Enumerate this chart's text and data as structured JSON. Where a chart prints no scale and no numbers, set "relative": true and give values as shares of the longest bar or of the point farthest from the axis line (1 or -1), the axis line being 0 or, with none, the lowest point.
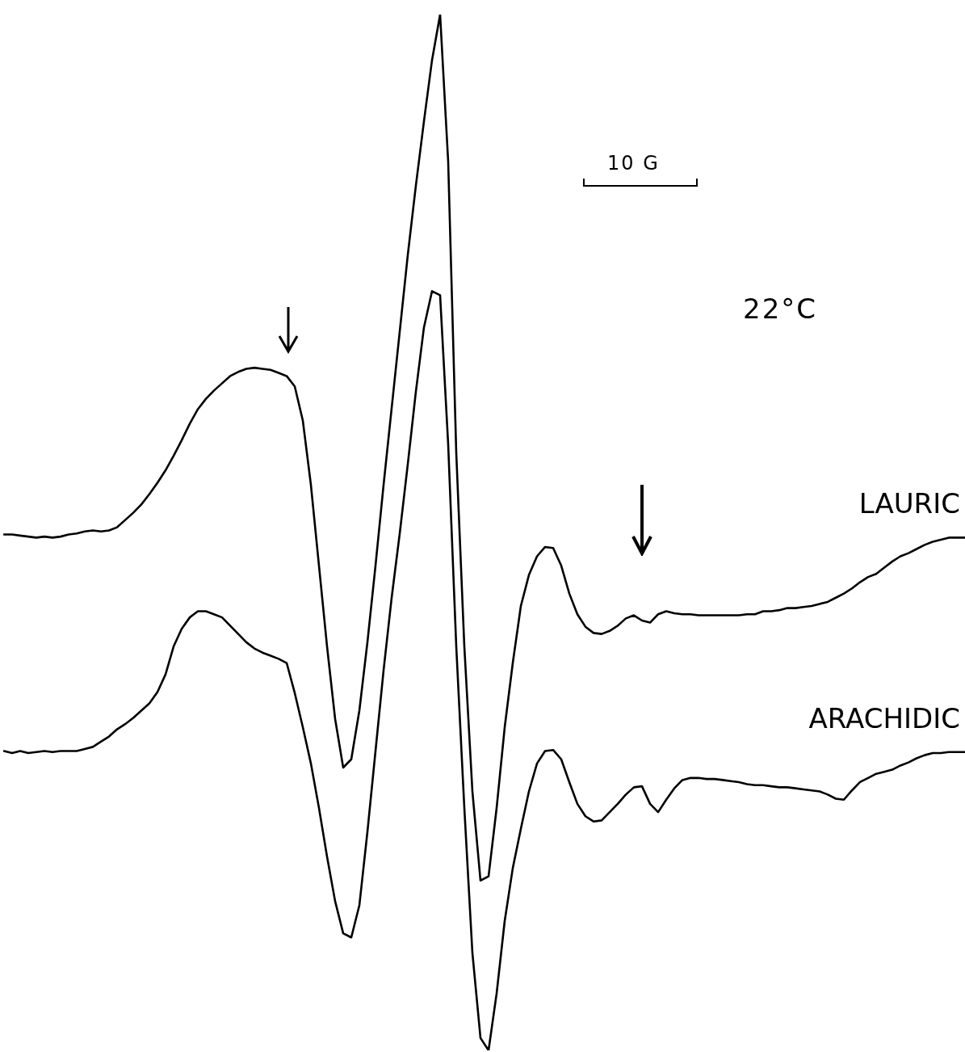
{
  "chart_data": {
    "type": "line",
    "relative": true,
    "categories": [
      null,
      null,
      null,
      null,
      null,
      null,
      null,
      null,
      null,
      null,
      null,
      null,
      null,
      null,
      null,
      null,
      null,
      null,
      null,
      null,
      null,
      null,
      null,
      null,
      null,
      null,
      null,
      null,
      null,
      null,
      null,
      null,
      null,
      null,
      null,
      null,
      null,
      null,
      null,
      null,
      null,
      null,
      null,
      null,
      null,
      null,
      null,
      null,
      null,
      null,
      null,
      null,
      null,
      null,
      null,
      null,
      null,
      null,
      null,
      null,
      null,
      null,
      null,
      null,
      null,
      null,
      null,
      null,
      null,
      null,
      null,
      null,
      null,
      null,
      null,
      null,
      null,
      null,
      null,
      null,
      null,
      null,
      null,
      null,
      null,
      null,
      null,
      null,
      null,
      null,
      null,
      null,
      null,
      null,
      null,
      null,
      null,
      null,
      null,
      null,
      null,
      null,
      null,
      null,
      null,
      null,
      null,
      null,
      null,
      null,
      null,
      null,
      null,
      null,
      null,
      null,
      null,
      null,
      null,
      null
    ],
    "annotations": [
      "10 G",
      "22°C"
    ],
    "series": [
      {
        "name": "LAURIC",
        "color": "#000000",
        "values": [
          0.498,
          0.498,
          0.497,
          0.496,
          0.495,
          0.496,
          0.495,
          0.496,
          0.498,
          0.499,
          0.501,
          0.502,
          0.501,
          0.502,
          0.505,
          0.512,
          0.519,
          0.527,
          0.537,
          0.548,
          0.56,
          0.574,
          0.589,
          0.605,
          0.619,
          0.629,
          0.637,
          0.644,
          0.651,
          0.655,
          0.658,
          0.659,
          0.658,
          0.657,
          0.654,
          0.651,
          0.641,
          0.608,
          0.546,
          0.468,
          0.39,
          0.32,
          0.273,
          0.281,
          0.328,
          0.394,
          0.468,
          0.546,
          0.62,
          0.694,
          0.768,
          0.835,
          0.897,
          0.956,
          1.0,
          0.858,
          0.577,
          0.39,
          0.25,
          0.164,
          0.168,
          0.234,
          0.312,
          0.374,
          0.429,
          0.459,
          0.477,
          0.486,
          0.485,
          0.468,
          0.441,
          0.421,
          0.409,
          0.403,
          0.402,
          0.405,
          0.41,
          0.417,
          0.42,
          0.415,
          0.413,
          0.421,
          0.424,
          0.422,
          0.421,
          0.421,
          0.42,
          0.42,
          0.42,
          0.42,
          0.42,
          0.42,
          0.421,
          0.421,
          0.424,
          0.424,
          0.425,
          0.427,
          0.427,
          0.428,
          0.429,
          0.431,
          0.433,
          0.437,
          0.441,
          0.446,
          0.452,
          0.457,
          0.46,
          0.466,
          0.472,
          0.477,
          0.48,
          0.484,
          0.488,
          0.491,
          0.493,
          0.495,
          0.495,
          0.495
        ]
      },
      {
        "name": "ARACHIDIC",
        "color": "#000000",
        "values": [
          0.289,
          0.287,
          0.289,
          0.287,
          0.288,
          0.289,
          0.288,
          0.289,
          0.289,
          0.289,
          0.291,
          0.293,
          0.298,
          0.303,
          0.31,
          0.315,
          0.321,
          0.328,
          0.335,
          0.346,
          0.363,
          0.39,
          0.407,
          0.418,
          0.424,
          0.424,
          0.421,
          0.418,
          0.41,
          0.402,
          0.394,
          0.388,
          0.384,
          0.381,
          0.378,
          0.374,
          0.345,
          0.312,
          0.277,
          0.234,
          0.187,
          0.144,
          0.113,
          0.109,
          0.14,
          0.211,
          0.289,
          0.367,
          0.437,
          0.499,
          0.566,
          0.636,
          0.698,
          0.733,
          0.729,
          0.585,
          0.39,
          0.234,
          0.094,
          0.012,
          0.0,
          0.055,
          0.125,
          0.176,
          0.214,
          0.25,
          0.277,
          0.289,
          0.29,
          0.281,
          0.259,
          0.238,
          0.226,
          0.221,
          0.222,
          0.23,
          0.238,
          0.247,
          0.254,
          0.255,
          0.238,
          0.23,
          0.242,
          0.253,
          0.261,
          0.263,
          0.263,
          0.262,
          0.262,
          0.261,
          0.26,
          0.259,
          0.257,
          0.256,
          0.256,
          0.255,
          0.254,
          0.254,
          0.253,
          0.252,
          0.251,
          0.25,
          0.247,
          0.243,
          0.242,
          0.251,
          0.259,
          0.263,
          0.267,
          0.269,
          0.271,
          0.275,
          0.278,
          0.282,
          0.285,
          0.287,
          0.287,
          0.288,
          0.288,
          0.288
        ]
      }
    ]
  }
}
